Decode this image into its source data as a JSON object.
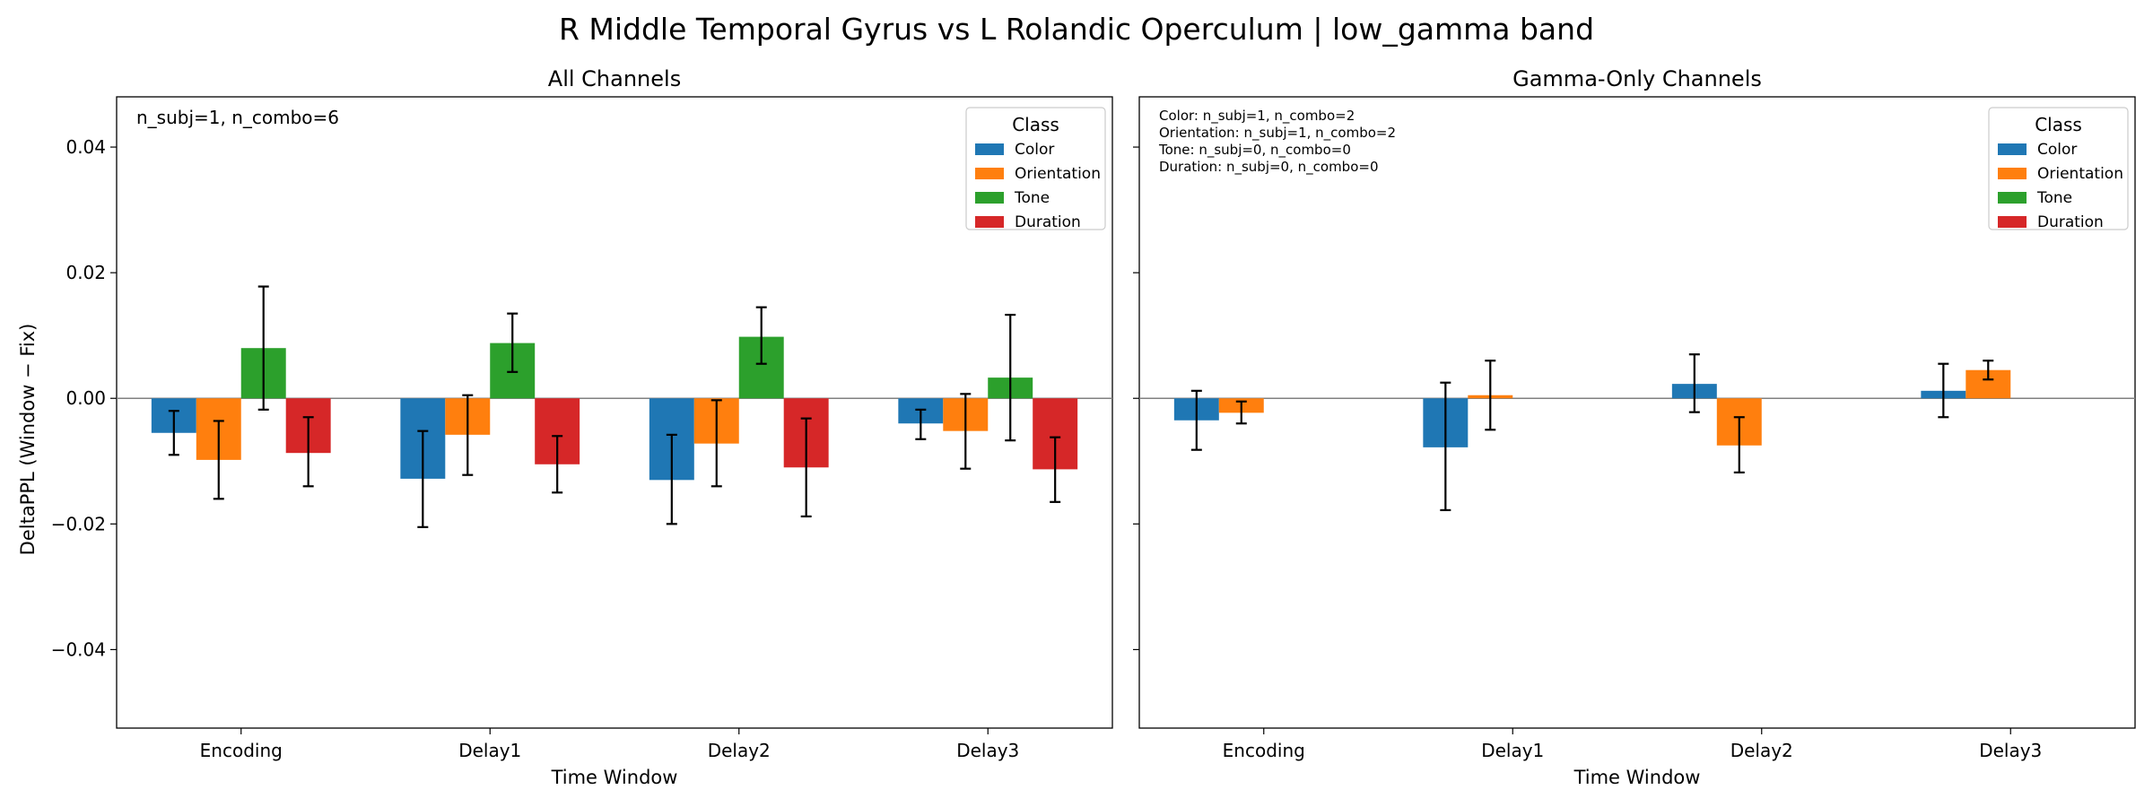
{
  "chart_data": {
    "suptitle": "R Middle Temporal Gyrus vs L Rolandic Operculum  |  low_gamma band",
    "ylabel": "DeltaPPL (Window − Fix)",
    "xlabel": "Time Window",
    "ylim": [
      -0.0525,
      0.048
    ],
    "yticks": [
      0.04,
      0.02,
      0.0,
      -0.02,
      -0.04
    ],
    "ytick_labels": [
      "0.04",
      "0.02",
      "0.00",
      "−0.02",
      "−0.04"
    ],
    "categories": [
      "Encoding",
      "Delay1",
      "Delay2",
      "Delay3"
    ],
    "legend": {
      "title": "Class",
      "placement": "top-right",
      "items": [
        {
          "name": "Color",
          "color": "#1f77b4"
        },
        {
          "name": "Orientation",
          "color": "#ff7f0e"
        },
        {
          "name": "Tone",
          "color": "#2ca02c"
        },
        {
          "name": "Duration",
          "color": "#d62728"
        }
      ]
    },
    "panels": [
      {
        "title": "All Channels",
        "type": "bar",
        "annotation": [
          "n_subj=1, n_combo=6"
        ],
        "series": [
          {
            "name": "Color",
            "values": [
              -0.0055,
              -0.0128,
              -0.013,
              -0.004
            ],
            "err_low": [
              -0.009,
              -0.0205,
              -0.02,
              -0.0065
            ],
            "err_high": [
              -0.002,
              -0.0052,
              -0.0058,
              -0.0018
            ]
          },
          {
            "name": "Orientation",
            "values": [
              -0.0098,
              -0.0058,
              -0.0072,
              -0.0052
            ],
            "err_low": [
              -0.016,
              -0.0122,
              -0.014,
              -0.0112
            ],
            "err_high": [
              -0.0036,
              0.0005,
              -0.0003,
              0.0007
            ]
          },
          {
            "name": "Tone",
            "values": [
              0.008,
              0.0088,
              0.0098,
              0.0033
            ],
            "err_low": [
              -0.0018,
              0.0042,
              0.0055,
              -0.0067
            ],
            "err_high": [
              0.0178,
              0.0135,
              0.0145,
              0.0133
            ]
          },
          {
            "name": "Duration",
            "values": [
              -0.0087,
              -0.0105,
              -0.011,
              -0.0113
            ],
            "err_low": [
              -0.014,
              -0.015,
              -0.0188,
              -0.0165
            ],
            "err_high": [
              -0.003,
              -0.006,
              -0.0032,
              -0.0062
            ]
          }
        ]
      },
      {
        "title": "Gamma-Only Channels",
        "type": "bar",
        "annotation": [
          "Color: n_subj=1, n_combo=2",
          "Orientation: n_subj=1, n_combo=2",
          "Tone: n_subj=0, n_combo=0",
          "Duration: n_subj=0, n_combo=0"
        ],
        "series": [
          {
            "name": "Color",
            "values": [
              -0.0035,
              -0.0078,
              0.0023,
              0.0012
            ],
            "err_low": [
              -0.0082,
              -0.0178,
              -0.0022,
              -0.003
            ],
            "err_high": [
              0.0012,
              0.0025,
              0.007,
              0.0055
            ]
          },
          {
            "name": "Orientation",
            "values": [
              -0.0023,
              0.0005,
              -0.0075,
              0.0045
            ],
            "err_low": [
              -0.004,
              -0.005,
              -0.0118,
              0.003
            ],
            "err_high": [
              -0.0005,
              0.006,
              -0.003,
              0.006
            ]
          },
          {
            "name": "Tone",
            "values": [
              null,
              null,
              null,
              null
            ]
          },
          {
            "name": "Duration",
            "values": [
              null,
              null,
              null,
              null
            ]
          }
        ]
      }
    ]
  }
}
